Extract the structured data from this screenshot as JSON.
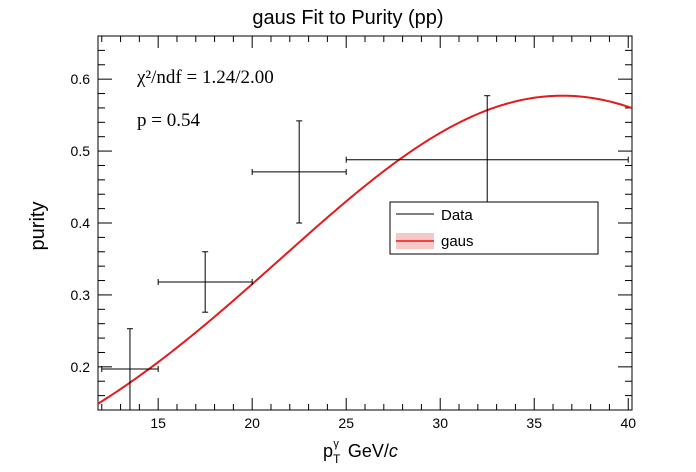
{
  "chart_data": {
    "type": "scatter",
    "title": "gaus Fit to Purity (pp)",
    "xlabel": "p_T^γ GeV/c",
    "ylabel": "purity",
    "xlim": [
      11.8,
      40.2
    ],
    "ylim": [
      0.14,
      0.66
    ],
    "x_ticks": [
      15,
      20,
      25,
      30,
      35,
      40
    ],
    "y_ticks": [
      0.2,
      0.3,
      0.4,
      0.5,
      0.6
    ],
    "series": [
      {
        "name": "Data",
        "points": [
          {
            "x": 13.5,
            "y": 0.197,
            "xerr": [
              12,
              15
            ],
            "yerr": [
              0.14,
              0.253
            ]
          },
          {
            "x": 17.5,
            "y": 0.318,
            "xerr": [
              15,
              20
            ],
            "yerr": [
              0.276,
              0.36
            ]
          },
          {
            "x": 22.5,
            "y": 0.471,
            "xerr": [
              20,
              25
            ],
            "yerr": [
              0.4,
              0.542
            ]
          },
          {
            "x": 32.5,
            "y": 0.488,
            "xerr": [
              25,
              40
            ],
            "yerr": [
              0.4,
              0.577
            ]
          }
        ]
      },
      {
        "name": "gaus",
        "fit": {
          "amplitude": 0.577,
          "mean": 36.5,
          "sigma": 15.0
        },
        "color": "#e31a1c"
      }
    ],
    "stats": {
      "chi2_text": "χ²/ndf = 1.24/2.00",
      "p_text": "p = 0.54"
    },
    "legend": {
      "position": "center-right",
      "entries": [
        "Data",
        "gaus"
      ]
    }
  }
}
